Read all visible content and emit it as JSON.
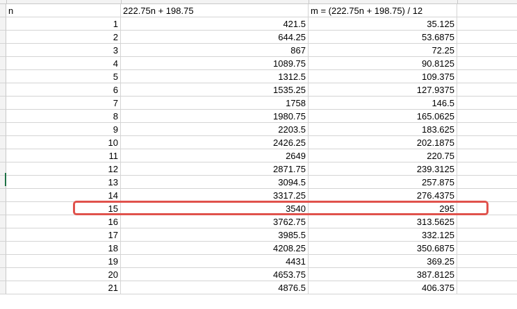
{
  "headers": {
    "col_a": "n",
    "col_b": "222.75n + 198.75",
    "col_c": "m = (222.75n + 198.75) / 12"
  },
  "rows": [
    {
      "n": "1",
      "b": "421.5",
      "c": "35.125"
    },
    {
      "n": "2",
      "b": "644.25",
      "c": "53.6875"
    },
    {
      "n": "3",
      "b": "867",
      "c": "72.25"
    },
    {
      "n": "4",
      "b": "1089.75",
      "c": "90.8125"
    },
    {
      "n": "5",
      "b": "1312.5",
      "c": "109.375"
    },
    {
      "n": "6",
      "b": "1535.25",
      "c": "127.9375"
    },
    {
      "n": "7",
      "b": "1758",
      "c": "146.5"
    },
    {
      "n": "8",
      "b": "1980.75",
      "c": "165.0625"
    },
    {
      "n": "9",
      "b": "2203.5",
      "c": "183.625"
    },
    {
      "n": "10",
      "b": "2426.25",
      "c": "202.1875"
    },
    {
      "n": "11",
      "b": "2649",
      "c": "220.75"
    },
    {
      "n": "12",
      "b": "2871.75",
      "c": "239.3125"
    },
    {
      "n": "13",
      "b": "3094.5",
      "c": "257.875"
    },
    {
      "n": "14",
      "b": "3317.25",
      "c": "276.4375"
    },
    {
      "n": "15",
      "b": "3540",
      "c": "295"
    },
    {
      "n": "16",
      "b": "3762.75",
      "c": "313.5625"
    },
    {
      "n": "17",
      "b": "3985.5",
      "c": "332.125"
    },
    {
      "n": "18",
      "b": "4208.25",
      "c": "350.6875"
    },
    {
      "n": "19",
      "b": "4431",
      "c": "369.25"
    },
    {
      "n": "20",
      "b": "4653.75",
      "c": "387.8125"
    },
    {
      "n": "21",
      "b": "4876.5",
      "c": "406.375"
    }
  ],
  "highlighted_row_n": "15",
  "colors": {
    "highlight_border": "#e0524c",
    "gridline": "#d4d4d4",
    "selection_mark": "#1e7145"
  }
}
